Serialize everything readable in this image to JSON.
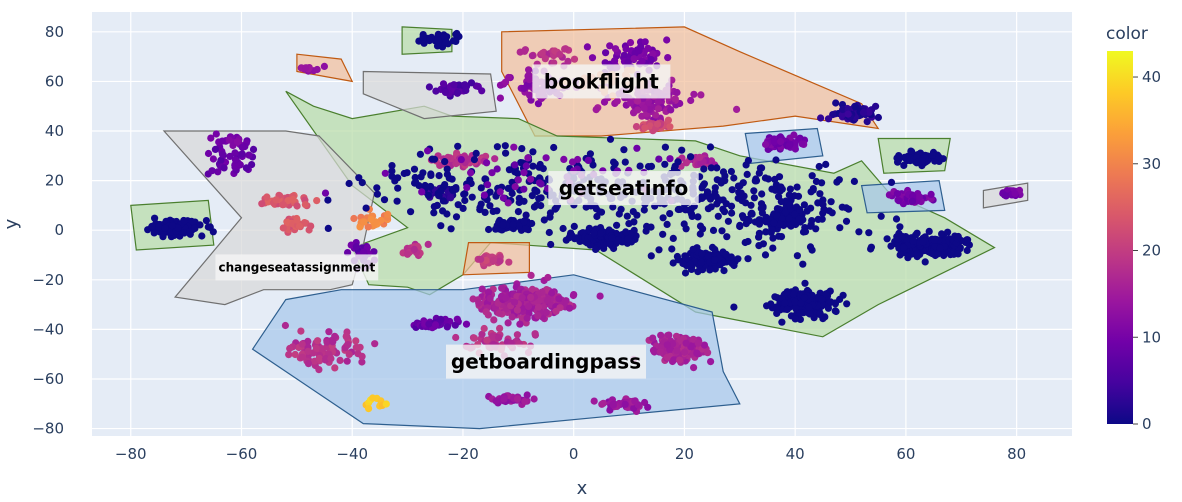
{
  "chart_data": {
    "type": "scatter",
    "title": "",
    "xlabel": "x",
    "ylabel": "y",
    "xlim": [
      -87,
      90
    ],
    "ylim": [
      -83,
      88
    ],
    "xticks": [
      -80,
      -60,
      -40,
      -20,
      0,
      20,
      40,
      60,
      80
    ],
    "xtick_labels": [
      "−80",
      "−60",
      "−40",
      "−20",
      "0",
      "20",
      "40",
      "60",
      "80"
    ],
    "yticks": [
      -80,
      -60,
      -40,
      -20,
      0,
      20,
      40,
      60,
      80
    ],
    "ytick_labels": [
      "−80",
      "−60",
      "−40",
      "−20",
      "0",
      "20",
      "40",
      "60",
      "80"
    ],
    "grid": true,
    "colorbar": {
      "title": "color",
      "range": [
        0,
        43
      ],
      "ticks": [
        0,
        10,
        20,
        30,
        40
      ],
      "tick_labels": [
        "0",
        "10",
        "20",
        "30",
        "40"
      ],
      "colorscale": [
        "#0d0887",
        "#46039f",
        "#7201a8",
        "#9c179e",
        "#bd3786",
        "#d8576b",
        "#ed7953",
        "#fb9f3a",
        "#fdca26",
        "#f0f921"
      ]
    },
    "clusters": [
      {
        "x": -72,
        "y": 1,
        "sx": 4,
        "sy": 2.5,
        "n": 140,
        "color": 0
      },
      {
        "x": 5,
        "y": -3,
        "sx": 4.5,
        "sy": 3,
        "n": 150,
        "color": 0
      },
      {
        "x": 38,
        "y": 5,
        "sx": 3.5,
        "sy": 2.5,
        "n": 110,
        "color": 0
      },
      {
        "x": 41,
        "y": -29,
        "sx": 5,
        "sy": 4,
        "n": 220,
        "color": 0
      },
      {
        "x": 64,
        "y": -6,
        "sx": 5.5,
        "sy": 3.5,
        "n": 200,
        "color": 0
      },
      {
        "x": 24,
        "y": -12,
        "sx": 5,
        "sy": 3,
        "n": 120,
        "color": 0
      },
      {
        "x": 63,
        "y": 29,
        "sx": 3,
        "sy": 2,
        "n": 80,
        "color": 0
      },
      {
        "x": -24,
        "y": 77,
        "sx": 2.5,
        "sy": 2,
        "n": 45,
        "color": 0
      },
      {
        "x": -11,
        "y": 2,
        "sx": 3,
        "sy": 2,
        "n": 60,
        "color": 0
      },
      {
        "x": -24,
        "y": 15,
        "sx": 2.5,
        "sy": 2,
        "n": 35,
        "color": 2
      },
      {
        "x": 50,
        "y": 47,
        "sx": 3,
        "sy": 2.5,
        "n": 70,
        "color": 2
      },
      {
        "x": -25,
        "y": -38,
        "sx": 3,
        "sy": 2,
        "n": 40,
        "color": 8
      },
      {
        "x": -22,
        "y": 57,
        "sx": 4,
        "sy": 3,
        "n": 35,
        "color": 6
      },
      {
        "x": 38,
        "y": 35,
        "sx": 3,
        "sy": 2,
        "n": 70,
        "color": 10
      },
      {
        "x": 61,
        "y": 13,
        "sx": 2.5,
        "sy": 2,
        "n": 55,
        "color": 10
      },
      {
        "x": 79,
        "y": 15,
        "sx": 1.5,
        "sy": 1.5,
        "n": 18,
        "color": 10
      },
      {
        "x": -15,
        "y": -12,
        "sx": 2,
        "sy": 1.8,
        "n": 50,
        "color": 20
      },
      {
        "x": -48,
        "y": 65,
        "sx": 2,
        "sy": 1,
        "n": 12,
        "color": 14
      },
      {
        "x": -9,
        "y": -29,
        "sx": 6,
        "sy": 5,
        "n": 320,
        "color": 16
      },
      {
        "x": 19,
        "y": -48,
        "sx": 4,
        "sy": 4,
        "n": 170,
        "color": 16
      },
      {
        "x": -11,
        "y": -68,
        "sx": 3,
        "sy": 1.5,
        "n": 35,
        "color": 14
      },
      {
        "x": 9,
        "y": -70,
        "sx": 3,
        "sy": 2,
        "n": 45,
        "color": 14
      },
      {
        "x": -20,
        "y": 28,
        "sx": 4,
        "sy": 2,
        "n": 60,
        "color": 18
      },
      {
        "x": 22,
        "y": 28,
        "sx": 2.5,
        "sy": 2,
        "n": 35,
        "color": 16
      },
      {
        "x": -52,
        "y": 12,
        "sx": 4,
        "sy": 2,
        "n": 45,
        "color": 24
      },
      {
        "x": -50,
        "y": 2,
        "sx": 2,
        "sy": 2,
        "n": 35,
        "color": 24
      },
      {
        "x": -62,
        "y": 28,
        "sx": 4,
        "sy": 5,
        "n": 45,
        "color": 8
      },
      {
        "x": -62,
        "y": 36,
        "sx": 3,
        "sy": 3,
        "n": 20,
        "color": 10
      },
      {
        "x": -38,
        "y": -10,
        "sx": 3,
        "sy": 5,
        "n": 25,
        "color": 8
      },
      {
        "x": -29,
        "y": -8,
        "sx": 2,
        "sy": 2,
        "n": 20,
        "color": 18
      },
      {
        "x": -45,
        "y": -48,
        "sx": 5,
        "sy": 5,
        "n": 90,
        "color": 18
      },
      {
        "x": -14,
        "y": -45,
        "sx": 5,
        "sy": 4,
        "n": 60,
        "color": 18
      },
      {
        "x": -6,
        "y": 58,
        "sx": 5,
        "sy": 4,
        "n": 60,
        "color": 12
      },
      {
        "x": 14,
        "y": 52,
        "sx": 6,
        "sy": 6,
        "n": 100,
        "color": 14
      },
      {
        "x": 15,
        "y": 42,
        "sx": 3,
        "sy": 2,
        "n": 30,
        "color": 22
      },
      {
        "x": 10,
        "y": 70,
        "sx": 6,
        "sy": 5,
        "n": 60,
        "color": 10
      },
      {
        "x": -5,
        "y": 70,
        "sx": 5,
        "sy": 3,
        "n": 30,
        "color": 18
      },
      {
        "x": 5,
        "y": 60,
        "sx": 6,
        "sy": 4,
        "n": 25,
        "color": 30
      },
      {
        "x": -36,
        "y": 4,
        "sx": 3,
        "sy": 3,
        "n": 25,
        "color": 30
      },
      {
        "x": -36,
        "y": -70,
        "sx": 2,
        "sy": 1.5,
        "n": 10,
        "color": 38
      },
      {
        "x": -5,
        "y": 18,
        "sx": 28,
        "sy": 14,
        "n": 280,
        "color": 0
      },
      {
        "x": 30,
        "y": 8,
        "sx": 18,
        "sy": 14,
        "n": 220,
        "color": 0
      },
      {
        "x": -5,
        "y": 24,
        "sx": 20,
        "sy": 10,
        "n": 50,
        "color": 10
      }
    ],
    "regions": [
      {
        "name": "bookflight",
        "label": "bookflight",
        "label_at": [
          5,
          60
        ],
        "font_size": 20,
        "fill": "#f2bf9c",
        "stroke": "#c05a12",
        "points": [
          [
            -13,
            80
          ],
          [
            20,
            82
          ],
          [
            30,
            72
          ],
          [
            52,
            51
          ],
          [
            55,
            41
          ],
          [
            40,
            46
          ],
          [
            27,
            42
          ],
          [
            5,
            38
          ],
          [
            -7,
            38
          ],
          [
            -13,
            64
          ]
        ]
      },
      {
        "name": "getseatinfo",
        "label": "getseatinfo",
        "label_at": [
          9,
          17
        ],
        "font_size": 20,
        "fill": "#b8dca8",
        "stroke": "#4a7f2e",
        "points": [
          [
            -52,
            56
          ],
          [
            -47,
            50
          ],
          [
            -40,
            45
          ],
          [
            -27,
            50
          ],
          [
            -22,
            46
          ],
          [
            -10,
            45
          ],
          [
            -3,
            38
          ],
          [
            22,
            36
          ],
          [
            30,
            30
          ],
          [
            47,
            23
          ],
          [
            52,
            28
          ],
          [
            57,
            15
          ],
          [
            67,
            5
          ],
          [
            76,
            -7
          ],
          [
            55,
            -30
          ],
          [
            45,
            -43
          ],
          [
            22,
            -33
          ],
          [
            4,
            -8
          ],
          [
            -15,
            -5
          ],
          [
            -20,
            -18
          ],
          [
            -26,
            -26
          ],
          [
            -30,
            -23
          ],
          [
            -37,
            -22
          ],
          [
            -40,
            -7
          ],
          [
            -30,
            1
          ],
          [
            -40,
            18
          ]
        ]
      },
      {
        "name": "getboardingpass",
        "label": "getboardingpass",
        "label_at": [
          -5,
          -53
        ],
        "font_size": 20,
        "fill": "#a7c7ea",
        "stroke": "#2e5f8f",
        "points": [
          [
            -58,
            -48
          ],
          [
            -52,
            -28
          ],
          [
            -42,
            -24
          ],
          [
            -20,
            -24
          ],
          [
            0,
            -18
          ],
          [
            25,
            -33
          ],
          [
            27,
            -57
          ],
          [
            30,
            -70
          ],
          [
            -17,
            -80
          ],
          [
            -38,
            -78
          ]
        ]
      },
      {
        "name": "changeseatassignment",
        "label": "changeseatassignment",
        "label_at": [
          -50,
          -15
        ],
        "font_size": 12,
        "fill": "#d8d8d8",
        "stroke": "#707070",
        "points": [
          [
            -74,
            40
          ],
          [
            -52,
            40
          ],
          [
            -46,
            38
          ],
          [
            -36,
            15
          ],
          [
            -38,
            -6
          ],
          [
            -40,
            -22
          ],
          [
            -44,
            -24
          ],
          [
            -56,
            -24
          ],
          [
            -63,
            -30
          ],
          [
            -72,
            -27
          ],
          [
            -60,
            5
          ]
        ]
      },
      {
        "name": "box-far-left",
        "label": "",
        "fill": "#b8dca8",
        "stroke": "#4a7f2e",
        "points": [
          [
            -80,
            10
          ],
          [
            -66,
            12
          ],
          [
            -65,
            -6
          ],
          [
            -79,
            -8
          ]
        ]
      },
      {
        "name": "box-top-left-small",
        "label": "",
        "fill": "#f2bf9c",
        "stroke": "#c05a12",
        "points": [
          [
            -50,
            71
          ],
          [
            -42,
            69
          ],
          [
            -40,
            60
          ],
          [
            -50,
            64
          ]
        ]
      },
      {
        "name": "box-top-green",
        "label": "",
        "fill": "#b8dca8",
        "stroke": "#4a7f2e",
        "points": [
          [
            -31,
            82
          ],
          [
            -22,
            81
          ],
          [
            -22,
            72
          ],
          [
            -31,
            71
          ]
        ]
      },
      {
        "name": "box-top-gray",
        "label": "",
        "fill": "#d8d8d8",
        "stroke": "#707070",
        "points": [
          [
            -38,
            64
          ],
          [
            -15,
            63
          ],
          [
            -14,
            48
          ],
          [
            -27,
            45
          ],
          [
            -38,
            55
          ]
        ]
      },
      {
        "name": "box-mid-orange",
        "label": "",
        "fill": "#f2bf9c",
        "stroke": "#c05a12",
        "points": [
          [
            -19,
            -5
          ],
          [
            -8,
            -5
          ],
          [
            -8,
            -17
          ],
          [
            -20,
            -18
          ]
        ]
      },
      {
        "name": "box-right-blue-1",
        "label": "",
        "fill": "#a7c7ea",
        "stroke": "#2e5f8f",
        "points": [
          [
            31,
            39
          ],
          [
            44,
            41
          ],
          [
            45,
            30
          ],
          [
            32,
            27
          ]
        ]
      },
      {
        "name": "box-right-blue-2",
        "label": "",
        "fill": "#a7c7ea",
        "stroke": "#2e5f8f",
        "points": [
          [
            52,
            18
          ],
          [
            66,
            20
          ],
          [
            67,
            8
          ],
          [
            53,
            7
          ]
        ]
      },
      {
        "name": "box-right-green",
        "label": "",
        "fill": "#b8dca8",
        "stroke": "#4a7f2e",
        "points": [
          [
            55,
            37
          ],
          [
            68,
            37
          ],
          [
            67,
            24
          ],
          [
            56,
            23
          ]
        ]
      },
      {
        "name": "box-far-right-gray",
        "label": "",
        "fill": "#d8d8d8",
        "stroke": "#707070",
        "points": [
          [
            74,
            16
          ],
          [
            82,
            19
          ],
          [
            82,
            12
          ],
          [
            74,
            9
          ]
        ]
      }
    ]
  }
}
